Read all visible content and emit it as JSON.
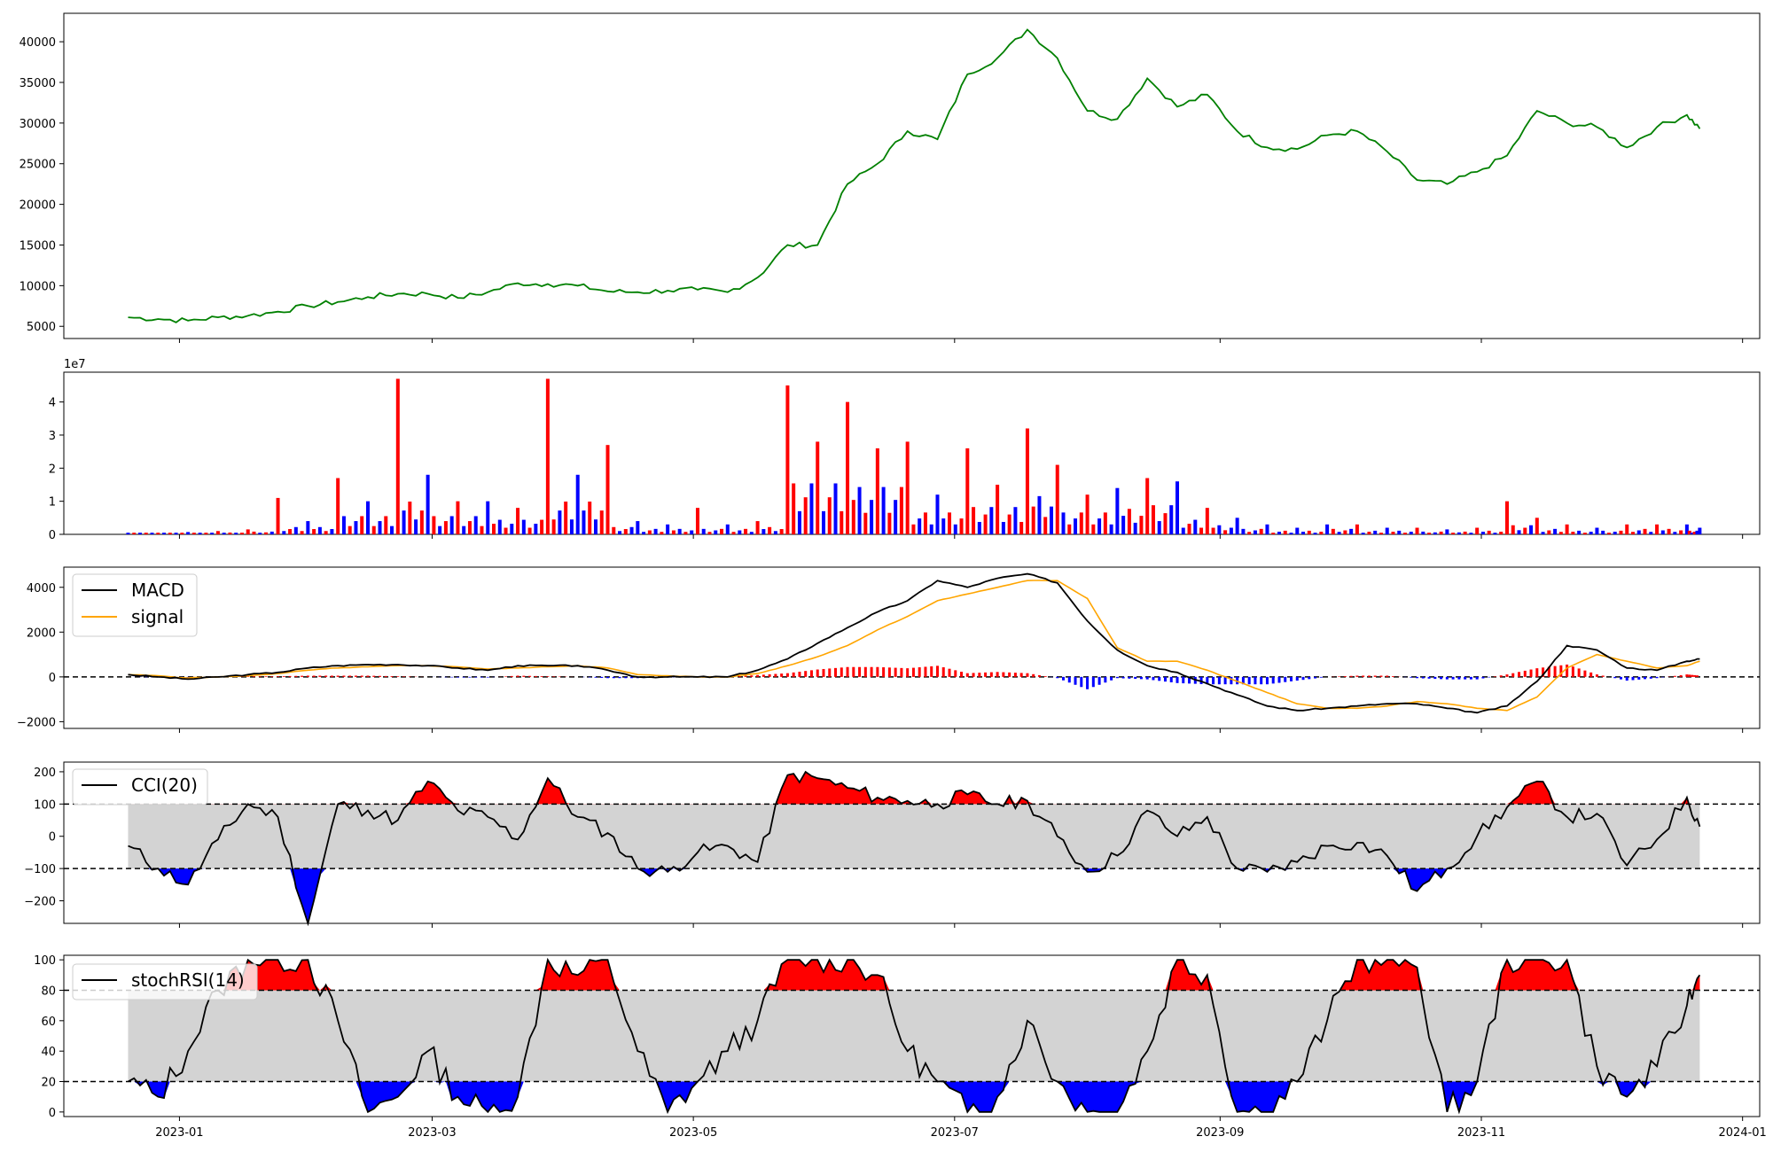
{
  "chart_data": [
    {
      "type": "line",
      "panel": "price",
      "color": "#008000",
      "ylim": [
        3500,
        43500
      ],
      "yticks": [
        5000,
        10000,
        15000,
        20000,
        25000,
        30000,
        35000,
        40000
      ],
      "ytick_labels": [
        "5000",
        "10000",
        "15000",
        "20000",
        "25000",
        "30000",
        "35000",
        "40000"
      ],
      "x": [
        "2022-12-20",
        "2022-12-27",
        "2023-01-03",
        "2023-01-10",
        "2023-01-17",
        "2023-01-24",
        "2023-01-31",
        "2023-02-07",
        "2023-02-14",
        "2023-02-21",
        "2023-02-28",
        "2023-03-07",
        "2023-03-14",
        "2023-03-21",
        "2023-03-28",
        "2023-04-04",
        "2023-04-11",
        "2023-04-18",
        "2023-04-25",
        "2023-05-02",
        "2023-05-09",
        "2023-05-16",
        "2023-05-23",
        "2023-05-30",
        "2023-06-06",
        "2023-06-13",
        "2023-06-20",
        "2023-06-27",
        "2023-07-04",
        "2023-07-11",
        "2023-07-18",
        "2023-07-25",
        "2023-08-01",
        "2023-08-08",
        "2023-08-15",
        "2023-08-22",
        "2023-08-29",
        "2023-09-05",
        "2023-09-12",
        "2023-09-19",
        "2023-09-26",
        "2023-10-03",
        "2023-10-10",
        "2023-10-17",
        "2023-10-24",
        "2023-10-31",
        "2023-11-07",
        "2023-11-14",
        "2023-11-21",
        "2023-11-28",
        "2023-12-05",
        "2023-12-12",
        "2023-12-19",
        "2023-12-22"
      ],
      "values": [
        6100,
        5900,
        5700,
        6100,
        6300,
        6800,
        7500,
        8000,
        8600,
        9000,
        9000,
        8500,
        9200,
        10300,
        10200,
        10000,
        9300,
        9200,
        9400,
        9500,
        9200,
        11000,
        15000,
        15000,
        22500,
        25000,
        29000,
        28000,
        36000,
        38000,
        41500,
        38000,
        31500,
        30500,
        35500,
        32000,
        33500,
        29000,
        27000,
        26800,
        28500,
        29000,
        26500,
        23000,
        22500,
        24000,
        26000,
        31500,
        30000,
        29500,
        27000,
        29500,
        31000,
        29300
      ]
    },
    {
      "type": "bar",
      "panel": "volume",
      "scale_label": "1e7",
      "ylim": [
        0,
        4.9
      ],
      "yticks": [
        0,
        1,
        2,
        3,
        4
      ],
      "ytick_labels": [
        "0",
        "1",
        "2",
        "3",
        "4"
      ],
      "colors": {
        "up": "#ff0000",
        "down": "#0000ff",
        "flat": "#000000"
      },
      "x": [
        "2022-12-20",
        "2022-12-27",
        "2023-01-03",
        "2023-01-10",
        "2023-01-17",
        "2023-01-24",
        "2023-01-31",
        "2023-02-07",
        "2023-02-14",
        "2023-02-21",
        "2023-02-28",
        "2023-03-07",
        "2023-03-14",
        "2023-03-21",
        "2023-03-28",
        "2023-04-04",
        "2023-04-11",
        "2023-04-18",
        "2023-04-25",
        "2023-05-02",
        "2023-05-09",
        "2023-05-16",
        "2023-05-23",
        "2023-05-30",
        "2023-06-06",
        "2023-06-13",
        "2023-06-20",
        "2023-06-27",
        "2023-07-04",
        "2023-07-11",
        "2023-07-18",
        "2023-07-25",
        "2023-08-01",
        "2023-08-08",
        "2023-08-15",
        "2023-08-22",
        "2023-08-29",
        "2023-09-05",
        "2023-09-12",
        "2023-09-19",
        "2023-09-26",
        "2023-10-03",
        "2023-10-10",
        "2023-10-17",
        "2023-10-24",
        "2023-10-31",
        "2023-11-07",
        "2023-11-14",
        "2023-11-21",
        "2023-11-28",
        "2023-12-05",
        "2023-12-12",
        "2023-12-19",
        "2023-12-22"
      ],
      "values": [
        0.05,
        0.05,
        0.07,
        0.1,
        0.15,
        1.1,
        0.4,
        1.7,
        1.0,
        4.7,
        1.8,
        1.0,
        1.0,
        0.8,
        4.7,
        1.8,
        2.7,
        0.4,
        0.3,
        0.8,
        0.3,
        0.4,
        4.5,
        2.8,
        4.0,
        2.6,
        2.8,
        1.2,
        2.6,
        1.5,
        3.2,
        2.1,
        1.2,
        1.4,
        1.7,
        1.6,
        0.8,
        0.5,
        0.3,
        0.2,
        0.3,
        0.3,
        0.2,
        0.2,
        0.15,
        0.2,
        1.0,
        0.5,
        0.3,
        0.2,
        0.3,
        0.3,
        0.3,
        0.2
      ],
      "dirs": [
        "d",
        "u",
        "d",
        "u",
        "u",
        "u",
        "d",
        "u",
        "d",
        "u",
        "d",
        "u",
        "d",
        "u",
        "u",
        "d",
        "u",
        "d",
        "d",
        "u",
        "d",
        "u",
        "u",
        "u",
        "u",
        "u",
        "u",
        "d",
        "u",
        "u",
        "u",
        "u",
        "u",
        "d",
        "u",
        "d",
        "u",
        "d",
        "d",
        "d",
        "d",
        "u",
        "d",
        "u",
        "d",
        "u",
        "u",
        "u",
        "u",
        "d",
        "u",
        "u",
        "d",
        "d"
      ]
    },
    {
      "type": "line",
      "panel": "macd",
      "ylim": [
        -2300,
        4900
      ],
      "yticks": [
        -2000,
        0,
        2000,
        4000
      ],
      "ytick_labels": [
        "−2000",
        "0",
        "2000",
        "4000"
      ],
      "hline": 0,
      "legend_position": "upper-left",
      "series": [
        {
          "name": "MACD",
          "color": "#000000",
          "values": [
            100,
            0,
            -100,
            0,
            100,
            200,
            400,
            500,
            550,
            550,
            500,
            400,
            300,
            500,
            500,
            500,
            300,
            0,
            0,
            0,
            0,
            300,
            800,
            1500,
            2200,
            2900,
            3400,
            4300,
            4000,
            4400,
            4600,
            4200,
            2500,
            1200,
            500,
            200,
            -300,
            -800,
            -1300,
            -1500,
            -1400,
            -1300,
            -1200,
            -1200,
            -1400,
            -1600,
            -1300,
            -200,
            1400,
            1200,
            400,
            300,
            700,
            800
          ]
        },
        {
          "name": "signal",
          "color": "#ffa500",
          "values": [
            100,
            50,
            -50,
            0,
            50,
            150,
            300,
            400,
            450,
            500,
            500,
            450,
            350,
            400,
            450,
            500,
            400,
            100,
            50,
            0,
            0,
            150,
            500,
            900,
            1400,
            2100,
            2700,
            3400,
            3700,
            4000,
            4300,
            4300,
            3500,
            1300,
            700,
            700,
            300,
            -200,
            -700,
            -1200,
            -1400,
            -1400,
            -1300,
            -1100,
            -1200,
            -1400,
            -1500,
            -900,
            400,
            1000,
            700,
            400,
            500,
            700
          ]
        }
      ],
      "histogram": {
        "up": "#ff0000",
        "down": "#0000ff"
      }
    },
    {
      "type": "line",
      "panel": "cci",
      "ylim": [
        -270,
        230
      ],
      "yticks": [
        -200,
        -100,
        0,
        100,
        200
      ],
      "ytick_labels": [
        "−200",
        "−100",
        "0",
        "100",
        "200"
      ],
      "band": [
        -100,
        100
      ],
      "colors": {
        "above": "#ff0000",
        "below": "#0000ff",
        "band": "#d3d3d3",
        "line": "#000000"
      },
      "series": [
        {
          "name": "CCI(20)",
          "values": [
            -30,
            -100,
            -150,
            -10,
            100,
            60,
            -270,
            100,
            80,
            50,
            170,
            80,
            60,
            -10,
            180,
            60,
            10,
            -100,
            -110,
            -50,
            -30,
            -80,
            190,
            180,
            150,
            120,
            110,
            100,
            130,
            100,
            110,
            0,
            -110,
            -60,
            80,
            0,
            60,
            -100,
            -110,
            -80,
            -30,
            -20,
            -60,
            -170,
            -100,
            0,
            90,
            170,
            60,
            70,
            -90,
            -10,
            120,
            30
          ]
        }
      ]
    },
    {
      "type": "line",
      "panel": "stochrsi",
      "ylim": [
        -3,
        103
      ],
      "yticks": [
        0,
        20,
        40,
        60,
        80,
        100
      ],
      "ytick_labels": [
        "0",
        "20",
        "40",
        "60",
        "80",
        "100"
      ],
      "band": [
        20,
        80
      ],
      "colors": {
        "above": "#ff0000",
        "below": "#0000ff",
        "band": "#d3d3d3",
        "line": "#000000"
      },
      "series": [
        {
          "name": "stochRSI(14)",
          "values": [
            20,
            10,
            40,
            80,
            100,
            100,
            100,
            60,
            0,
            10,
            40,
            10,
            0,
            10,
            100,
            90,
            100,
            40,
            0,
            20,
            40,
            60,
            100,
            100,
            100,
            90,
            40,
            20,
            0,
            10,
            60,
            20,
            0,
            0,
            40,
            100,
            90,
            0,
            0,
            20,
            60,
            100,
            100,
            95,
            0,
            20,
            100,
            100,
            100,
            30,
            10,
            30,
            70,
            90
          ]
        }
      ]
    }
  ],
  "x_axis": {
    "ticks": [
      "2023-01-01",
      "2023-03-01",
      "2023-05-01",
      "2023-07-01",
      "2023-09-01",
      "2023-11-01",
      "2024-01-01"
    ],
    "labels": [
      "2023-01",
      "2023-03",
      "2023-05",
      "2023-07",
      "2023-09",
      "2023-11",
      "2024-01"
    ]
  },
  "legends": {
    "macd": [
      "MACD",
      "signal"
    ],
    "cci": [
      "CCI(20)"
    ],
    "stochrsi": [
      "stochRSI(14)"
    ]
  }
}
